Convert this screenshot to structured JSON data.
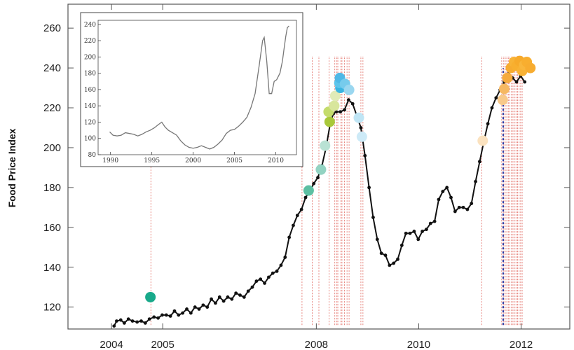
{
  "chart_data": [
    {
      "type": "line",
      "xlabel": "",
      "ylabel": "Food Price Index",
      "xlim": [
        2003.15,
        2012.95
      ],
      "ylim": [
        109,
        272
      ],
      "x_ticks": [
        2004,
        2005,
        2008,
        2010,
        2012
      ],
      "x_tick_labels": [
        "2004",
        "2005",
        "2008",
        "2010",
        "2012"
      ],
      "y_ticks": [
        120,
        140,
        160,
        180,
        200,
        220,
        240,
        260
      ],
      "grid": false,
      "series": [
        {
          "color": "#111111",
          "points": [
            [
              2004.05,
              110.5
            ],
            [
              2004.1,
              113
            ],
            [
              2004.18,
              113.5
            ],
            [
              2004.25,
              112
            ],
            [
              2004.33,
              114
            ],
            [
              2004.41,
              113
            ],
            [
              2004.5,
              112.5
            ],
            [
              2004.58,
              113
            ],
            [
              2004.66,
              112
            ],
            [
              2004.74,
              114
            ],
            [
              2004.83,
              115
            ],
            [
              2004.91,
              114.5
            ],
            [
              2004.99,
              116
            ],
            [
              2005.07,
              116
            ],
            [
              2005.15,
              115.5
            ],
            [
              2005.23,
              118
            ],
            [
              2005.31,
              116
            ],
            [
              2005.39,
              117
            ],
            [
              2005.47,
              119
            ],
            [
              2005.55,
              117
            ],
            [
              2005.63,
              120
            ],
            [
              2005.71,
              119
            ],
            [
              2005.79,
              121
            ],
            [
              2005.87,
              120
            ],
            [
              2005.95,
              124
            ],
            [
              2006.03,
              122
            ],
            [
              2006.11,
              125
            ],
            [
              2006.19,
              123
            ],
            [
              2006.27,
              125
            ],
            [
              2006.35,
              124
            ],
            [
              2006.43,
              127
            ],
            [
              2006.51,
              126
            ],
            [
              2006.59,
              125
            ],
            [
              2006.67,
              128
            ],
            [
              2006.75,
              130
            ],
            [
              2006.83,
              133
            ],
            [
              2006.91,
              134
            ],
            [
              2006.99,
              132
            ],
            [
              2007.07,
              135
            ],
            [
              2007.15,
              137
            ],
            [
              2007.23,
              138
            ],
            [
              2007.31,
              141
            ],
            [
              2007.39,
              145
            ],
            [
              2007.47,
              155
            ],
            [
              2007.55,
              161
            ],
            [
              2007.63,
              166
            ],
            [
              2007.71,
              169
            ],
            [
              2007.79,
              175
            ],
            [
              2007.87,
              178
            ],
            [
              2007.95,
              182
            ],
            [
              2008.03,
              185
            ],
            [
              2008.11,
              191
            ],
            [
              2008.19,
              200
            ],
            [
              2008.27,
              212
            ],
            [
              2008.33,
              217
            ],
            [
              2008.39,
              218
            ],
            [
              2008.47,
              218
            ],
            [
              2008.55,
              219
            ],
            [
              2008.63,
              224
            ],
            [
              2008.71,
              222
            ],
            [
              2008.79,
              216
            ],
            [
              2008.87,
              210
            ],
            [
              2008.95,
              196
            ],
            [
              2009.03,
              180
            ],
            [
              2009.11,
              165
            ],
            [
              2009.19,
              154
            ],
            [
              2009.27,
              147
            ],
            [
              2009.35,
              146
            ],
            [
              2009.43,
              141
            ],
            [
              2009.51,
              142
            ],
            [
              2009.59,
              144
            ],
            [
              2009.67,
              151
            ],
            [
              2009.75,
              157
            ],
            [
              2009.83,
              157
            ],
            [
              2009.91,
              158
            ],
            [
              2009.99,
              154
            ],
            [
              2010.07,
              158
            ],
            [
              2010.15,
              159
            ],
            [
              2010.23,
              162
            ],
            [
              2010.31,
              163
            ],
            [
              2010.39,
              174
            ],
            [
              2010.47,
              178
            ],
            [
              2010.55,
              180
            ],
            [
              2010.63,
              175
            ],
            [
              2010.71,
              168
            ],
            [
              2010.79,
              170
            ],
            [
              2010.87,
              170
            ],
            [
              2010.95,
              169
            ],
            [
              2011.03,
              172
            ],
            [
              2011.11,
              183
            ],
            [
              2011.19,
              193
            ],
            [
              2011.27,
              203
            ],
            [
              2011.35,
              212
            ],
            [
              2011.43,
              220
            ],
            [
              2011.51,
              225
            ],
            [
              2011.59,
              229
            ],
            [
              2011.67,
              233
            ],
            [
              2011.75,
              237
            ],
            [
              2011.83,
              235
            ],
            [
              2011.91,
              233
            ],
            [
              2011.99,
              236
            ],
            [
              2012.07,
              233
            ]
          ]
        }
      ],
      "events": [
        {
          "x": 2004.76,
          "y": 125,
          "color": "#18a98a"
        },
        {
          "x": 2007.85,
          "y": 178.5,
          "color": "#5dbfa2"
        },
        {
          "x": 2008.09,
          "y": 189,
          "color": "#93d3c2"
        },
        {
          "x": 2008.17,
          "y": 201,
          "color": "#b9e2d4"
        },
        {
          "x": 2008.26,
          "y": 213,
          "color": "#a8c83a"
        },
        {
          "x": 2008.24,
          "y": 218,
          "color": "#c4dc6c"
        },
        {
          "x": 2008.35,
          "y": 221,
          "color": "#d8e69c"
        },
        {
          "x": 2008.37,
          "y": 226,
          "color": "#e1ebb8"
        },
        {
          "x": 2008.47,
          "y": 230,
          "color": "#3bb4e0"
        },
        {
          "x": 2008.45,
          "y": 232.5,
          "color": "#5ec4ea"
        },
        {
          "x": 2008.46,
          "y": 235,
          "color": "#4fb8e6"
        },
        {
          "x": 2008.56,
          "y": 232,
          "color": "#76cbec"
        },
        {
          "x": 2008.64,
          "y": 229,
          "color": "#9ad7f0"
        },
        {
          "x": 2008.83,
          "y": 215,
          "color": "#bfe5f5"
        },
        {
          "x": 2008.89,
          "y": 205.5,
          "color": "#cdeaf7"
        },
        {
          "x": 2011.25,
          "y": 203.5,
          "color": "#fbe2bf"
        },
        {
          "x": 2011.64,
          "y": 224,
          "color": "#f8c98a"
        },
        {
          "x": 2011.67,
          "y": 229.5,
          "color": "#f6b862"
        },
        {
          "x": 2011.73,
          "y": 235,
          "color": "#f6aa3e"
        },
        {
          "x": 2011.8,
          "y": 240,
          "color": "#f7ab30"
        },
        {
          "x": 2011.86,
          "y": 243,
          "color": "#f8b336"
        },
        {
          "x": 2011.91,
          "y": 241,
          "color": "#f8af2f"
        },
        {
          "x": 2011.97,
          "y": 243.5,
          "color": "#f7aa2a"
        },
        {
          "x": 2012.02,
          "y": 238.5,
          "color": "#f8b235"
        },
        {
          "x": 2012.06,
          "y": 241.5,
          "color": "#f9b63c"
        },
        {
          "x": 2012.11,
          "y": 243,
          "color": "#f8ae2f"
        },
        {
          "x": 2012.18,
          "y": 240,
          "color": "#f7ac30"
        }
      ],
      "event_lines_x": [
        2004.77,
        2007.72,
        2007.92,
        2008.05,
        2008.25,
        2008.36,
        2008.4,
        2008.42,
        2008.48,
        2008.5,
        2008.55,
        2008.6,
        2008.64,
        2008.87,
        2008.91,
        2011.23,
        2011.62,
        2011.66,
        2011.69,
        2011.72,
        2011.75,
        2011.78,
        2011.81,
        2011.84,
        2011.87,
        2011.9,
        2011.93,
        2011.96,
        2011.99,
        2012.02
      ],
      "event_line_color": "#e0635a",
      "highlight_line_x": 2011.65,
      "highlight_line_color": "#2d3fa8"
    },
    {
      "type": "line",
      "xlim": [
        1988.5,
        2012.5
      ],
      "ylim": [
        80,
        245
      ],
      "x_ticks": [
        1990,
        1995,
        2000,
        2005,
        2010
      ],
      "x_tick_labels": [
        "1990",
        "1995",
        "2000",
        "2005",
        "2010"
      ],
      "y_ticks": [
        80,
        100,
        120,
        140,
        160,
        180,
        200,
        220,
        240
      ],
      "grid": false,
      "series": [
        {
          "color": "#777777",
          "points": [
            [
              1989.9,
              108
            ],
            [
              1990.3,
              104
            ],
            [
              1990.8,
              103
            ],
            [
              1991.3,
              104
            ],
            [
              1991.8,
              107
            ],
            [
              1992.3,
              106
            ],
            [
              1992.8,
              105
            ],
            [
              1993.3,
              103
            ],
            [
              1993.8,
              105
            ],
            [
              1994.3,
              108
            ],
            [
              1994.8,
              110
            ],
            [
              1995.3,
              113
            ],
            [
              1995.8,
              117
            ],
            [
              1996.2,
              120
            ],
            [
              1996.6,
              114
            ],
            [
              1997.0,
              110
            ],
            [
              1997.5,
              107
            ],
            [
              1998.0,
              104
            ],
            [
              1998.5,
              97
            ],
            [
              1999.0,
              92
            ],
            [
              1999.5,
              89
            ],
            [
              2000.0,
              88
            ],
            [
              2000.5,
              89
            ],
            [
              2001.0,
              91
            ],
            [
              2001.5,
              89
            ],
            [
              2002.0,
              87
            ],
            [
              2002.5,
              89
            ],
            [
              2003.0,
              93
            ],
            [
              2003.5,
              98
            ],
            [
              2004.0,
              106
            ],
            [
              2004.5,
              110
            ],
            [
              2005.0,
              111
            ],
            [
              2005.5,
              115
            ],
            [
              2006.0,
              120
            ],
            [
              2006.5,
              126
            ],
            [
              2007.0,
              138
            ],
            [
              2007.5,
              155
            ],
            [
              2008.0,
              190
            ],
            [
              2008.4,
              220
            ],
            [
              2008.6,
              224
            ],
            [
              2008.9,
              195
            ],
            [
              2009.2,
              155
            ],
            [
              2009.5,
              155
            ],
            [
              2009.8,
              170
            ],
            [
              2010.1,
              172
            ],
            [
              2010.5,
              180
            ],
            [
              2010.8,
              195
            ],
            [
              2011.0,
              210
            ],
            [
              2011.2,
              225
            ],
            [
              2011.4,
              236
            ],
            [
              2011.6,
              238
            ]
          ]
        }
      ]
    }
  ]
}
